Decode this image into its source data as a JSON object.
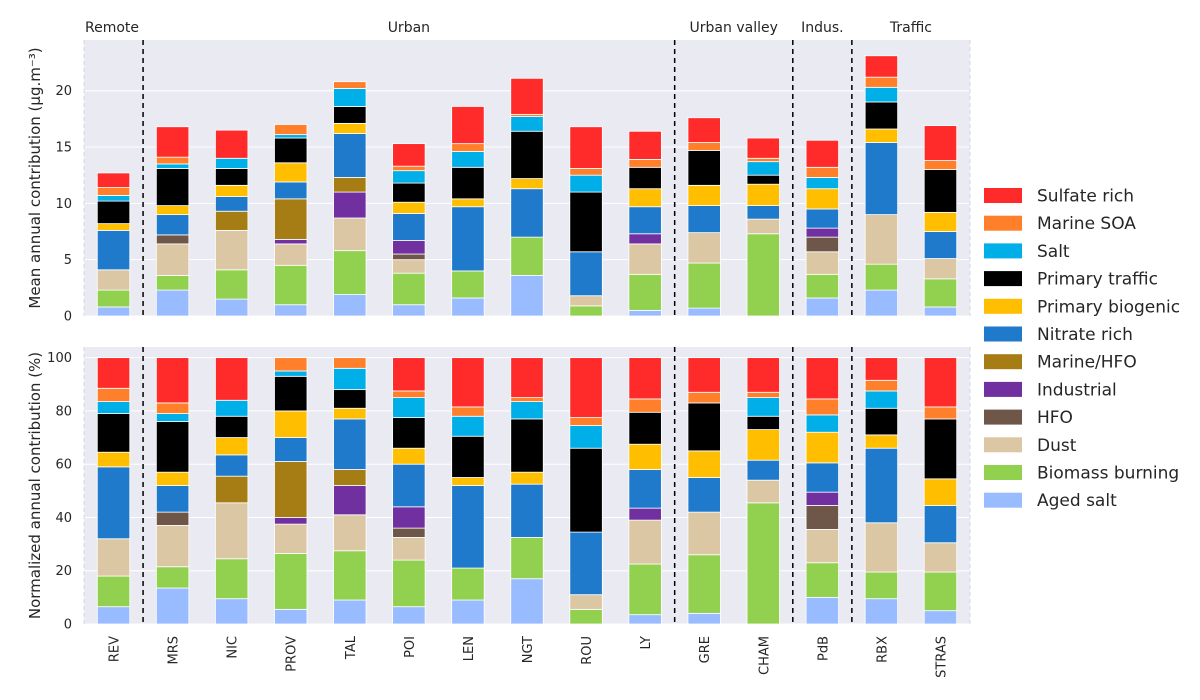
{
  "chart_data": {
    "type": "bar",
    "stacked": true,
    "categories": [
      "REV",
      "MRS",
      "NIC",
      "PROV",
      "TAL",
      "POI",
      "LEN",
      "NGT",
      "ROU",
      "LY",
      "GRE",
      "CHAM",
      "PdB",
      "RBX",
      "STRAS"
    ],
    "groups": [
      {
        "label": "Remote",
        "from": 0,
        "to": 0
      },
      {
        "label": "Urban",
        "from": 1,
        "to": 9
      },
      {
        "label": "Urban valley",
        "from": 10,
        "to": 11
      },
      {
        "label": "Indus.",
        "from": 12,
        "to": 12
      },
      {
        "label": "Traffic",
        "from": 13,
        "to": 14
      }
    ],
    "series_order_bottom_to_top": [
      "Aged salt",
      "Biomass burning",
      "Dust",
      "HFO",
      "Industrial",
      "Marine/HFO",
      "Nitrate rich",
      "Primary biogenic",
      "Primary traffic",
      "Salt",
      "Marine SOA",
      "Sulfate rich"
    ],
    "legend_order": [
      "Sulfate rich",
      "Marine SOA",
      "Salt",
      "Primary traffic",
      "Primary biogenic",
      "Nitrate rich",
      "Marine/HFO",
      "Industrial",
      "HFO",
      "Dust",
      "Biomass burning",
      "Aged salt"
    ],
    "colors": {
      "Sulfate rich": "#ff2a2a",
      "Marine SOA": "#ff7f2a",
      "Salt": "#00aee8",
      "Primary traffic": "#000000",
      "Primary biogenic": "#ffbf00",
      "Nitrate rich": "#1f7acc",
      "Marine/HFO": "#a57d14",
      "Industrial": "#7030a0",
      "HFO": "#6e5748",
      "Dust": "#dbc7a4",
      "Biomass burning": "#92d050",
      "Aged salt": "#99bbff"
    },
    "legend_placement": "right",
    "panels": [
      {
        "ylabel": "Mean annual contribution (μg.m⁻³)",
        "ylim": [
          0,
          24.5
        ],
        "yticks": [
          0,
          5,
          10,
          15,
          20
        ],
        "series": {
          "Aged salt": [
            0.8,
            2.3,
            1.5,
            1.0,
            1.9,
            1.0,
            1.6,
            3.6,
            0.0,
            0.5,
            0.7,
            0.0,
            1.6,
            2.3,
            0.8
          ],
          "Biomass burning": [
            1.5,
            1.3,
            2.6,
            3.5,
            3.9,
            2.8,
            2.4,
            3.4,
            0.9,
            3.2,
            4.0,
            7.3,
            2.1,
            2.3,
            2.5
          ],
          "Dust": [
            1.8,
            2.8,
            3.5,
            1.9,
            2.9,
            1.2,
            0.0,
            0.0,
            0.9,
            2.7,
            2.7,
            1.3,
            2.0,
            4.4,
            1.8
          ],
          "HFO": [
            0.0,
            0.8,
            0.0,
            0.0,
            0.0,
            0.5,
            0.0,
            0.0,
            0.0,
            0.0,
            0.0,
            0.0,
            1.3,
            0.0,
            0.0
          ],
          "Industrial": [
            0.0,
            0.0,
            0.0,
            0.4,
            2.3,
            1.2,
            0.0,
            0.0,
            0.0,
            0.9,
            0.0,
            0.0,
            0.8,
            0.0,
            0.0
          ],
          "Marine/HFO": [
            0.0,
            0.0,
            1.7,
            3.6,
            1.3,
            0.0,
            0.0,
            0.0,
            0.0,
            0.0,
            0.0,
            0.0,
            0.0,
            0.0,
            0.0
          ],
          "Nitrate rich": [
            3.5,
            1.8,
            1.3,
            1.5,
            3.9,
            2.4,
            5.7,
            4.3,
            3.9,
            2.4,
            2.4,
            1.2,
            1.7,
            6.4,
            2.4
          ],
          "Primary biogenic": [
            0.6,
            0.8,
            1.0,
            1.7,
            0.9,
            1.0,
            0.7,
            0.9,
            0.0,
            1.6,
            1.8,
            1.9,
            1.8,
            1.2,
            1.7
          ],
          "Primary traffic": [
            2.0,
            3.3,
            1.5,
            2.2,
            1.5,
            1.7,
            2.8,
            4.2,
            5.3,
            1.9,
            3.1,
            0.8,
            0.0,
            2.4,
            3.8
          ],
          "Salt": [
            0.5,
            0.4,
            0.9,
            0.3,
            1.6,
            1.1,
            1.4,
            1.3,
            1.5,
            0.0,
            0.0,
            1.2,
            1.0,
            1.3,
            0.0
          ],
          "Marine SOA": [
            0.7,
            0.6,
            0.0,
            0.9,
            0.6,
            0.4,
            0.7,
            0.2,
            0.6,
            0.7,
            0.7,
            0.3,
            0.9,
            0.9,
            0.8
          ],
          "Sulfate rich": [
            1.3,
            2.7,
            2.5,
            0.0,
            0.0,
            2.0,
            3.3,
            3.2,
            3.7,
            2.5,
            2.2,
            1.8,
            2.4,
            1.9,
            3.1
          ]
        }
      },
      {
        "ylabel": "Normalized annual contribution (%)",
        "ylim": [
          0,
          104
        ],
        "yticks": [
          0,
          20,
          40,
          60,
          80,
          100
        ],
        "series": {
          "Aged salt": [
            6.5,
            13.5,
            9.5,
            5.5,
            9.0,
            6.5,
            9.0,
            17.0,
            0.0,
            3.5,
            4.0,
            0.0,
            10.0,
            9.5,
            5.0
          ],
          "Biomass burning": [
            11.5,
            8.0,
            15.0,
            21.0,
            18.5,
            17.5,
            12.0,
            15.5,
            5.5,
            19.0,
            22.0,
            45.5,
            13.0,
            10.0,
            14.5
          ],
          "Dust": [
            14.0,
            15.5,
            21.0,
            11.0,
            13.5,
            8.5,
            0.0,
            0.0,
            5.5,
            16.5,
            16.0,
            8.5,
            12.5,
            18.5,
            11.0
          ],
          "HFO": [
            0.0,
            5.0,
            0.0,
            0.0,
            0.0,
            3.5,
            0.0,
            0.0,
            0.0,
            0.0,
            0.0,
            0.0,
            9.0,
            0.0,
            0.0
          ],
          "Industrial": [
            0.0,
            0.0,
            0.0,
            2.5,
            11.0,
            8.0,
            0.0,
            0.0,
            0.0,
            4.5,
            0.0,
            0.0,
            5.0,
            0.0,
            0.0
          ],
          "Marine/HFO": [
            0.0,
            0.0,
            10.0,
            21.0,
            6.0,
            0.0,
            0.0,
            0.0,
            0.0,
            0.0,
            0.0,
            0.0,
            0.0,
            0.0,
            0.0
          ],
          "Nitrate rich": [
            27.0,
            10.0,
            8.0,
            9.0,
            19.0,
            16.0,
            31.0,
            20.0,
            23.5,
            14.5,
            13.0,
            7.5,
            11.0,
            28.0,
            14.0
          ],
          "Primary biogenic": [
            5.5,
            5.0,
            6.5,
            10.0,
            4.0,
            6.0,
            3.0,
            4.5,
            0.0,
            9.5,
            10.0,
            11.5,
            11.5,
            5.0,
            10.0
          ],
          "Primary traffic": [
            14.5,
            19.0,
            8.0,
            13.0,
            7.0,
            11.5,
            15.5,
            20.0,
            31.5,
            12.0,
            18.0,
            5.0,
            0.0,
            10.0,
            22.5
          ],
          "Salt": [
            4.5,
            3.0,
            6.0,
            2.0,
            8.0,
            7.5,
            7.5,
            6.5,
            8.5,
            0.0,
            0.0,
            7.0,
            6.5,
            6.5,
            0.0
          ],
          "Marine SOA": [
            5.0,
            4.0,
            0.0,
            5.0,
            4.0,
            2.5,
            3.5,
            1.5,
            3.0,
            5.0,
            4.0,
            2.0,
            6.0,
            4.0,
            4.5
          ],
          "Sulfate rich": [
            11.5,
            17.0,
            16.0,
            0.0,
            0.0,
            12.5,
            18.5,
            15.0,
            22.5,
            15.5,
            13.0,
            13.0,
            15.5,
            8.5,
            18.5
          ]
        }
      }
    ]
  }
}
